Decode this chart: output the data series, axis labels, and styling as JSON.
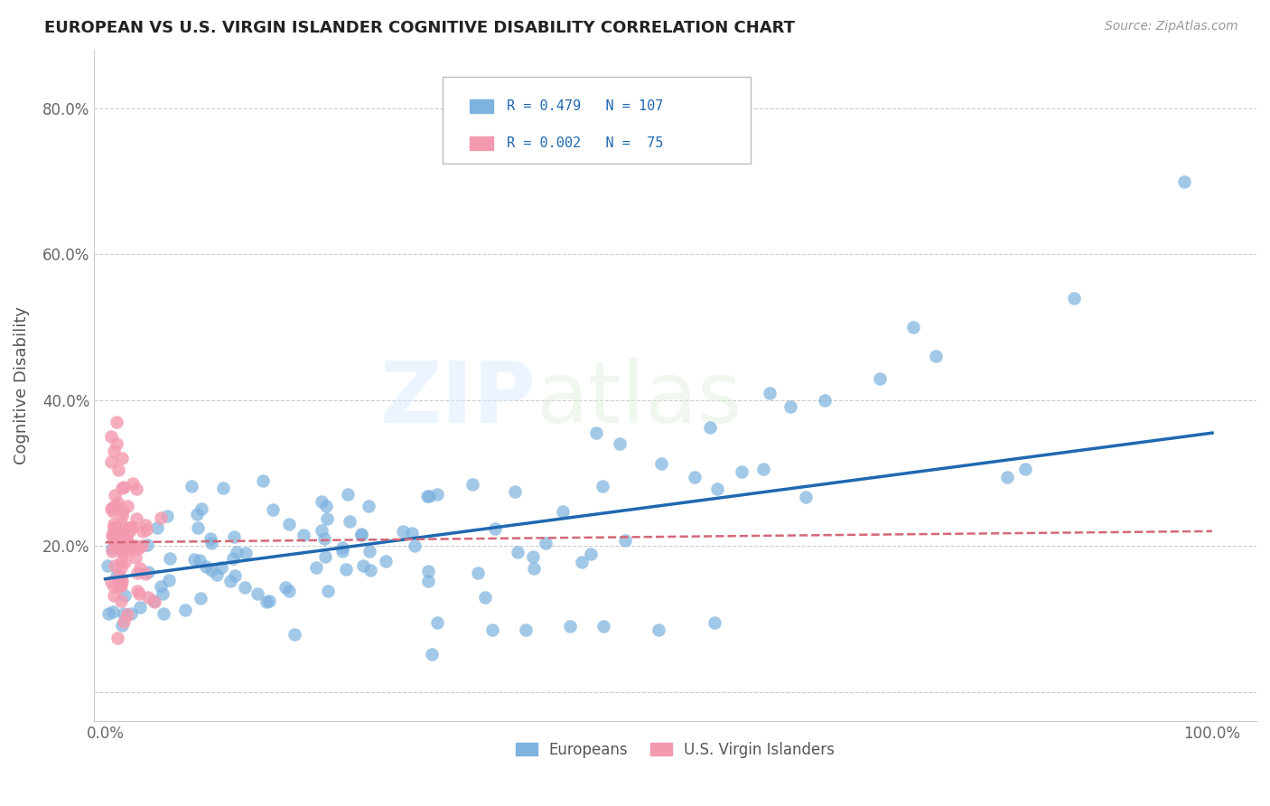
{
  "title": "EUROPEAN VS U.S. VIRGIN ISLANDER COGNITIVE DISABILITY CORRELATION CHART",
  "source": "Source: ZipAtlas.com",
  "ylabel": "Cognitive Disability",
  "scatter_blue_color": "#7eb3df",
  "scatter_pink_color": "#f49ab0",
  "line_blue_color": "#2068b0",
  "line_pink_color": "#d46878",
  "legend_text_color": "#2068b0",
  "title_color": "#222222",
  "grid_color": "#cccccc",
  "background_color": "#ffffff",
  "eu_line_x0": 0.0,
  "eu_line_y0": 0.155,
  "eu_line_x1": 1.0,
  "eu_line_y1": 0.355,
  "vi_line_x0": 0.0,
  "vi_line_y0": 0.205,
  "vi_line_x1": 0.13,
  "vi_line_y1": 0.207,
  "ylim_low": -0.04,
  "ylim_high": 0.88,
  "xlim_low": -0.01,
  "xlim_high": 1.04
}
